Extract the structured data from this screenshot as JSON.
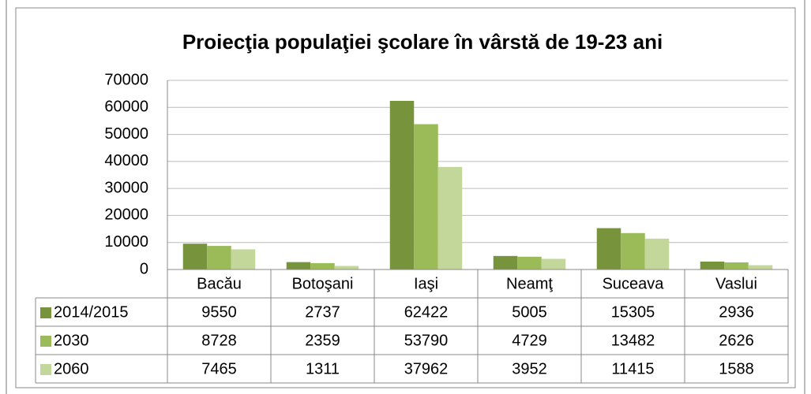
{
  "chart_data": {
    "type": "bar",
    "title": "Proiecţia populaţiei şcolare în vârstă de 19-23 ani",
    "categories": [
      "Bacău",
      "Botoşani",
      "Iaşi",
      "Neamţ",
      "Suceava",
      "Vaslui"
    ],
    "series": [
      {
        "name": "2014/2015",
        "color": "#77933c",
        "values": [
          9550,
          2737,
          62422,
          5005,
          15305,
          2936
        ]
      },
      {
        "name": "2030",
        "color": "#9bbb59",
        "values": [
          8728,
          2359,
          53790,
          4729,
          13482,
          2626
        ]
      },
      {
        "name": "2060",
        "color": "#c4d79b",
        "values": [
          7465,
          1311,
          37962,
          3952,
          11415,
          1588
        ]
      }
    ],
    "ylim": [
      0,
      70000
    ],
    "yticks": [
      0,
      10000,
      20000,
      30000,
      40000,
      50000,
      60000,
      70000
    ],
    "grid": true
  }
}
